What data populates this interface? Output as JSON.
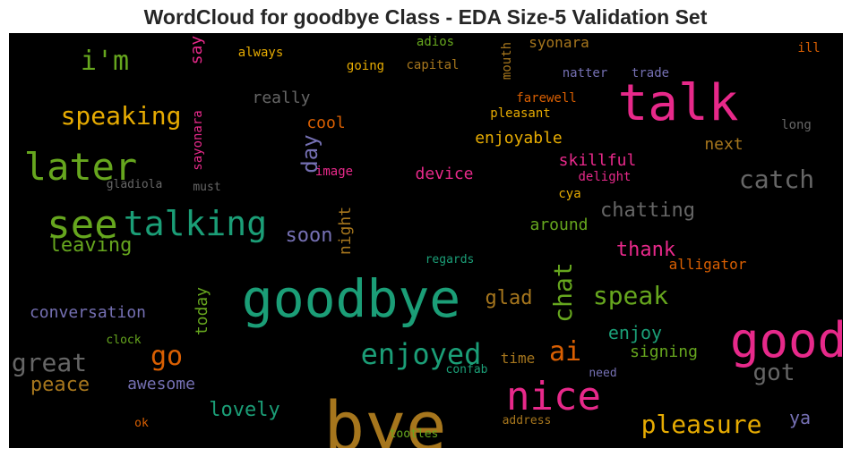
{
  "chart_data": {
    "type": "wordcloud",
    "title": "WordCloud for goodbye Class - EDA Size-5 Validation Set",
    "background": "#000000",
    "words": [
      {
        "text": "goodbye",
        "color": "#1b9e77"
      },
      {
        "text": "bye",
        "color": "#a6761d"
      },
      {
        "text": "good",
        "color": "#e7298a"
      },
      {
        "text": "talk",
        "color": "#e7298a"
      },
      {
        "text": "nice",
        "color": "#e7298a"
      },
      {
        "text": "later",
        "color": "#66a61e"
      },
      {
        "text": "see",
        "color": "#66a61e"
      },
      {
        "text": "talking",
        "color": "#1b9e77"
      },
      {
        "text": "i'm",
        "color": "#66a61e"
      },
      {
        "text": "enjoyed",
        "color": "#1b9e77"
      },
      {
        "text": "speaking",
        "color": "#e6ab02"
      },
      {
        "text": "pleasure",
        "color": "#e6ab02"
      },
      {
        "text": "great",
        "color": "#666666"
      },
      {
        "text": "catch",
        "color": "#666666"
      },
      {
        "text": "chat",
        "color": "#66a61e"
      },
      {
        "text": "speak",
        "color": "#66a61e"
      },
      {
        "text": "ai",
        "color": "#d95f02"
      },
      {
        "text": "go",
        "color": "#d95f02"
      },
      {
        "text": "got",
        "color": "#666666"
      },
      {
        "text": "chatting",
        "color": "#666666"
      },
      {
        "text": "day",
        "color": "#7570b3"
      },
      {
        "text": "leaving",
        "color": "#66a61e"
      },
      {
        "text": "glad",
        "color": "#a6761d"
      },
      {
        "text": "thank",
        "color": "#e7298a"
      },
      {
        "text": "enjoy",
        "color": "#1b9e77"
      },
      {
        "text": "lovely",
        "color": "#1b9e77"
      },
      {
        "text": "peace",
        "color": "#a6761d"
      },
      {
        "text": "soon",
        "color": "#7570b3"
      },
      {
        "text": "ya",
        "color": "#7570b3"
      },
      {
        "text": "awesome",
        "color": "#7570b3"
      },
      {
        "text": "conversation",
        "color": "#7570b3"
      },
      {
        "text": "signing",
        "color": "#66a61e"
      },
      {
        "text": "skillful",
        "color": "#e7298a"
      },
      {
        "text": "enjoyable",
        "color": "#e6ab02"
      },
      {
        "text": "device",
        "color": "#e7298a"
      },
      {
        "text": "around",
        "color": "#66a61e"
      },
      {
        "text": "alligator",
        "color": "#d95f02"
      },
      {
        "text": "next",
        "color": "#a6761d"
      },
      {
        "text": "cool",
        "color": "#d95f02"
      },
      {
        "text": "really",
        "color": "#666666"
      },
      {
        "text": "syonara",
        "color": "#a6761d"
      },
      {
        "text": "time",
        "color": "#a6761d"
      },
      {
        "text": "night",
        "color": "#a6761d"
      },
      {
        "text": "today",
        "color": "#66a61e"
      },
      {
        "text": "say",
        "color": "#e7298a"
      },
      {
        "text": "sayonara",
        "color": "#e7298a"
      },
      {
        "text": "always",
        "color": "#e6ab02"
      },
      {
        "text": "going",
        "color": "#e6ab02"
      },
      {
        "text": "capital",
        "color": "#a6761d"
      },
      {
        "text": "adios",
        "color": "#66a61e"
      },
      {
        "text": "mouth",
        "color": "#a6761d"
      },
      {
        "text": "natter",
        "color": "#7570b3"
      },
      {
        "text": "trade",
        "color": "#7570b3"
      },
      {
        "text": "ill",
        "color": "#d95f02"
      },
      {
        "text": "farewell",
        "color": "#d95f02"
      },
      {
        "text": "pleasant",
        "color": "#e6ab02"
      },
      {
        "text": "long",
        "color": "#666666"
      },
      {
        "text": "image",
        "color": "#e7298a"
      },
      {
        "text": "delight",
        "color": "#e7298a"
      },
      {
        "text": "cya",
        "color": "#e6ab02"
      },
      {
        "text": "gladiola",
        "color": "#666666"
      },
      {
        "text": "must",
        "color": "#666666"
      },
      {
        "text": "regards",
        "color": "#1b9e77"
      },
      {
        "text": "clock",
        "color": "#66a61e"
      },
      {
        "text": "confab",
        "color": "#1b9e77"
      },
      {
        "text": "need",
        "color": "#7570b3"
      },
      {
        "text": "ok",
        "color": "#d95f02"
      },
      {
        "text": "address",
        "color": "#a6761d"
      },
      {
        "text": "tootles",
        "color": "#66a61e"
      }
    ]
  }
}
